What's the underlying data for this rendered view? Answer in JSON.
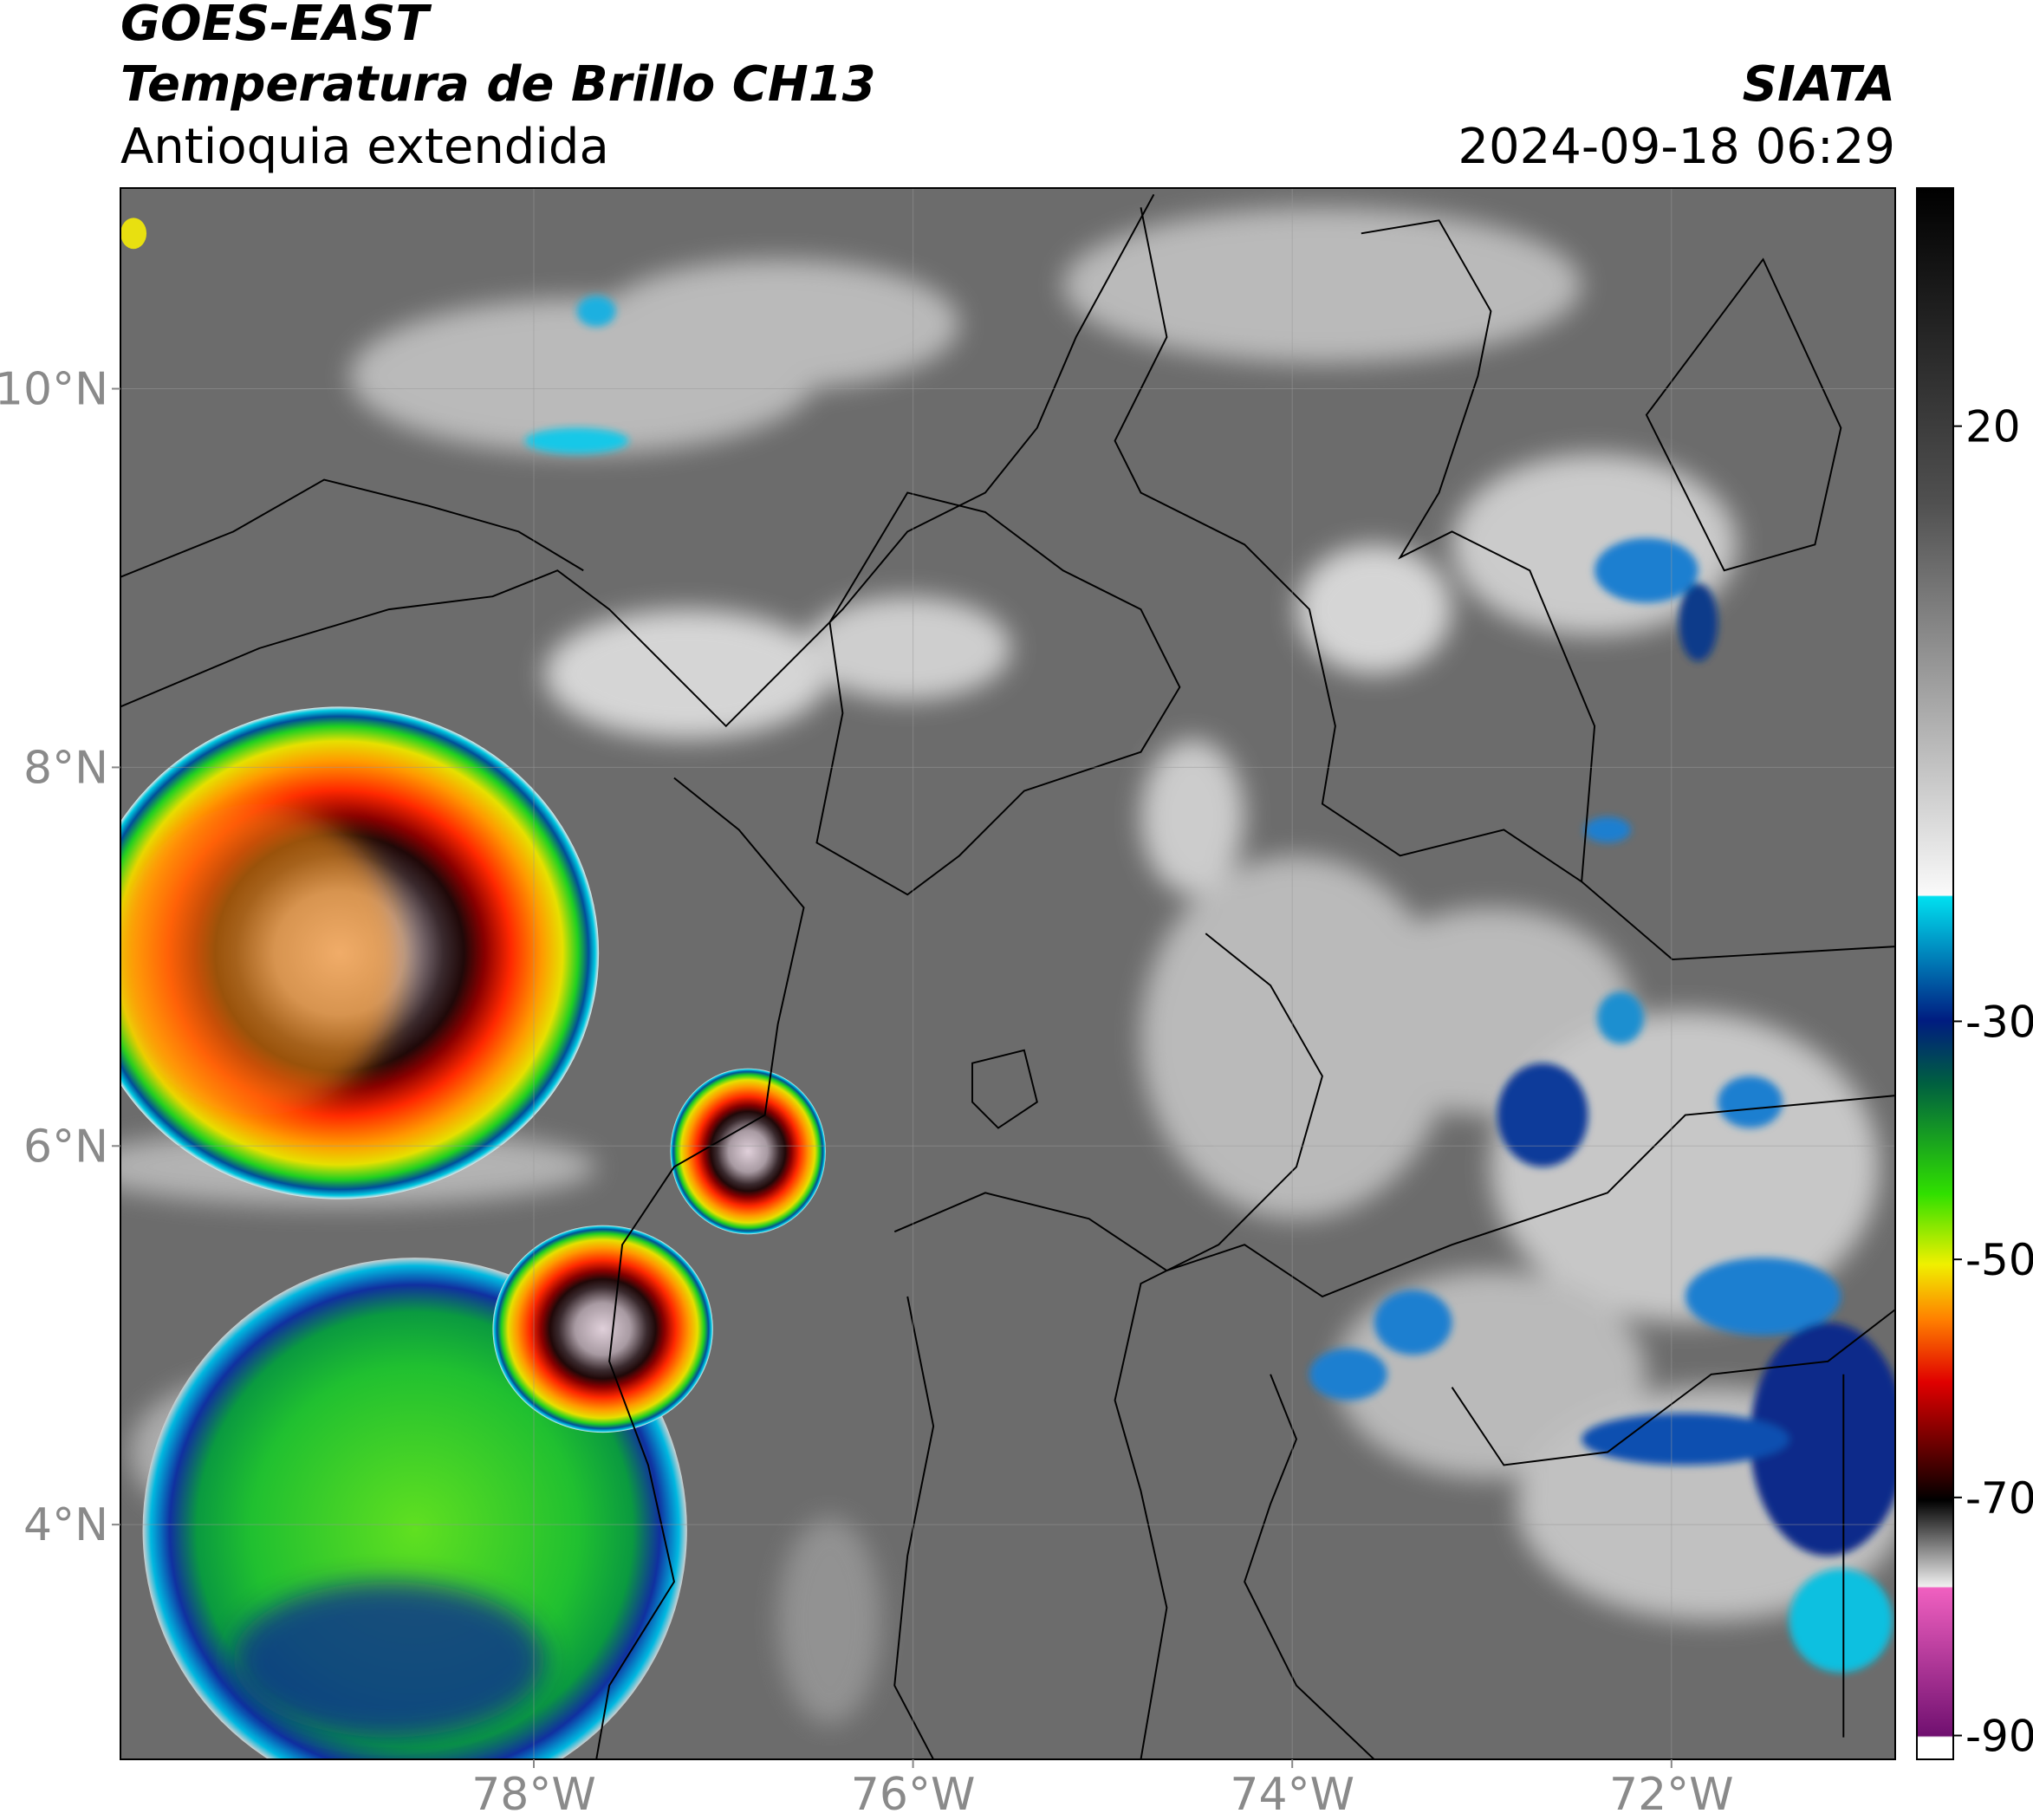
{
  "header": {
    "satellite": "GOES-EAST",
    "product": "Temperatura de Brillo CH13",
    "region": "Antioquia extendida",
    "agency": "SIATA",
    "datetime": "2024-09-18 06:29"
  },
  "map": {
    "xlim": [
      -80.18,
      -70.82
    ],
    "ylim": [
      2.76,
      11.06
    ],
    "xticks": [
      {
        "value": -78,
        "label": "78°W"
      },
      {
        "value": -76,
        "label": "76°W"
      },
      {
        "value": -74,
        "label": "74°W"
      },
      {
        "value": -72,
        "label": "72°W"
      }
    ],
    "yticks": [
      {
        "value": 10,
        "label": "10°N"
      },
      {
        "value": 8,
        "label": "8°N"
      },
      {
        "value": 6,
        "label": "6°N"
      },
      {
        "value": 4,
        "label": "4°N"
      }
    ],
    "grid": true
  },
  "colorbar": {
    "lim": [
      -92,
      40
    ],
    "ticks": [
      20,
      -30,
      -50,
      -70,
      -90
    ]
  }
}
